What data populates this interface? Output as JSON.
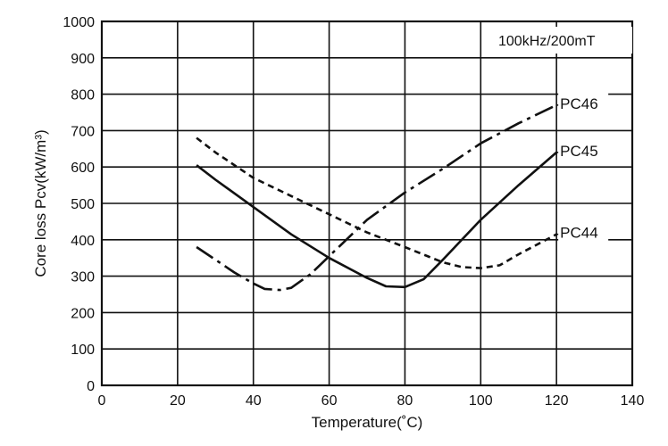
{
  "chart_data": {
    "type": "line",
    "title": "",
    "xlabel": "Temperature(˚C)",
    "ylabel": "Core loss Pcv(kW/m³)",
    "xlim": [
      0,
      140
    ],
    "ylim": [
      0,
      1000
    ],
    "x_ticks": [
      "0",
      "20",
      "40",
      "60",
      "80",
      "100",
      "120",
      "140"
    ],
    "y_ticks": [
      "0",
      "100",
      "200",
      "300",
      "400",
      "500",
      "600",
      "700",
      "800",
      "900",
      "1000"
    ],
    "grid": true,
    "annotation": "100kHz/200mT",
    "series": [
      {
        "name": "PC46",
        "style": "dash-dot",
        "points": [
          [
            25,
            380
          ],
          [
            30,
            345
          ],
          [
            35,
            310
          ],
          [
            40,
            280
          ],
          [
            43,
            265
          ],
          [
            47,
            262
          ],
          [
            50,
            268
          ],
          [
            55,
            305
          ],
          [
            60,
            355
          ],
          [
            70,
            455
          ],
          [
            80,
            530
          ],
          [
            90,
            595
          ],
          [
            100,
            665
          ],
          [
            110,
            720
          ],
          [
            120,
            770
          ]
        ]
      },
      {
        "name": "PC45",
        "style": "solid",
        "points": [
          [
            25,
            605
          ],
          [
            30,
            565
          ],
          [
            40,
            490
          ],
          [
            50,
            415
          ],
          [
            60,
            350
          ],
          [
            70,
            295
          ],
          [
            75,
            272
          ],
          [
            80,
            270
          ],
          [
            85,
            292
          ],
          [
            90,
            345
          ],
          [
            100,
            455
          ],
          [
            110,
            550
          ],
          [
            120,
            640
          ]
        ]
      },
      {
        "name": "PC44",
        "style": "dashed",
        "points": [
          [
            25,
            680
          ],
          [
            30,
            640
          ],
          [
            40,
            570
          ],
          [
            50,
            520
          ],
          [
            60,
            470
          ],
          [
            70,
            420
          ],
          [
            80,
            380
          ],
          [
            90,
            338
          ],
          [
            95,
            325
          ],
          [
            100,
            322
          ],
          [
            105,
            330
          ],
          [
            110,
            360
          ],
          [
            120,
            415
          ]
        ]
      }
    ]
  }
}
